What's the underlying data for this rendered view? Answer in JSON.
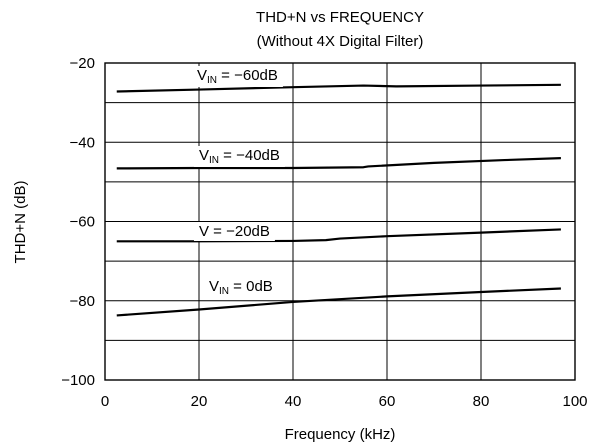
{
  "chart_data": {
    "type": "line",
    "title": "THD+N vs FREQUENCY",
    "subtitle": "(Without 4X Digital Filter)",
    "xlabel": "Frequency (kHz)",
    "ylabel": "THD+N (dB)",
    "xlim": [
      0,
      100
    ],
    "ylim": [
      -100,
      -20
    ],
    "xticks": [
      0,
      20,
      40,
      60,
      80,
      100
    ],
    "yticks": [
      -20,
      -40,
      -60,
      -80,
      -100
    ],
    "xtick_labels": [
      "0",
      "20",
      "40",
      "60",
      "80",
      "100"
    ],
    "ytick_labels": [
      "−20",
      "−40",
      "−60",
      "−80",
      "−100"
    ],
    "grid": true,
    "series": [
      {
        "label_main": "V",
        "label_sub": "IN",
        "label_value": " = −60dB",
        "x": [
          2.5,
          20,
          40,
          55,
          62,
          80,
          97
        ],
        "y": [
          -27.2,
          -26.7,
          -26.1,
          -25.7,
          -25.9,
          -25.7,
          -25.5
        ]
      },
      {
        "label_main": "V",
        "label_sub": "IN",
        "label_value": " = −40dB",
        "x": [
          2.5,
          20,
          40,
          55,
          56,
          70,
          85,
          97
        ],
        "y": [
          -46.6,
          -46.5,
          -46.5,
          -46.3,
          -46.1,
          -45.2,
          -44.5,
          -44.0
        ]
      },
      {
        "label_main": "V",
        "label_sub": "",
        "label_value": "   = −20dB",
        "x": [
          2.5,
          20,
          40,
          47,
          50,
          60,
          80,
          97
        ],
        "y": [
          -65.0,
          -65.0,
          -64.9,
          -64.7,
          -64.3,
          -63.7,
          -62.8,
          -62.0
        ]
      },
      {
        "label_main": "V",
        "label_sub": "IN",
        "label_value": " = 0dB",
        "x": [
          2.5,
          20,
          40,
          60,
          80,
          97
        ],
        "y": [
          -83.7,
          -82.2,
          -80.3,
          -78.9,
          -77.8,
          -76.9
        ]
      }
    ]
  }
}
